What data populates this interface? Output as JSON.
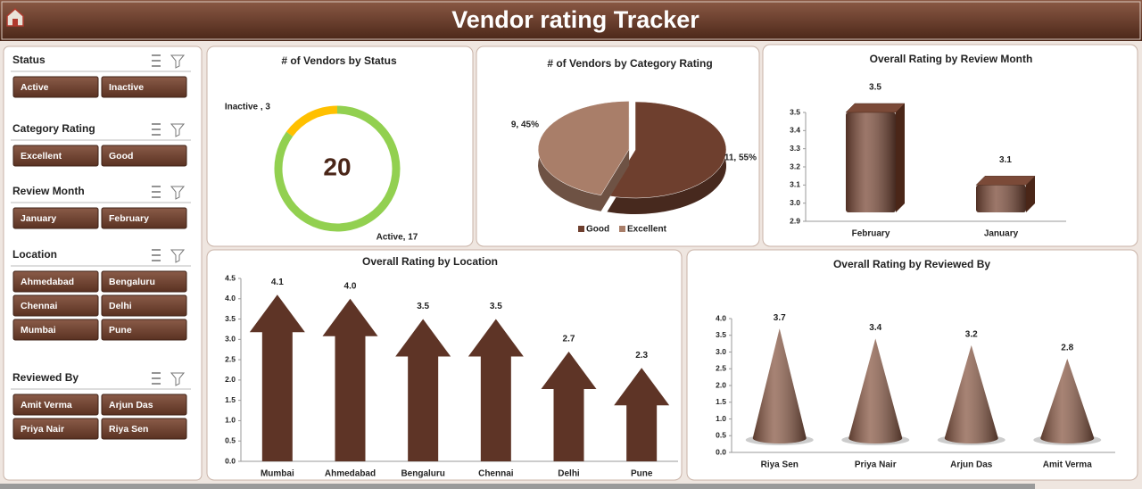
{
  "header": {
    "title": "Vendor rating Tracker"
  },
  "slicers": [
    {
      "title": "Status",
      "items": [
        "Active",
        "Inactive"
      ]
    },
    {
      "title": "Category Rating",
      "items": [
        "Excellent",
        "Good"
      ]
    },
    {
      "title": "Review Month",
      "items": [
        "January",
        "February"
      ]
    },
    {
      "title": "Location",
      "items": [
        "Ahmedabad",
        "Bengaluru",
        "Chennai",
        "Delhi",
        "Mumbai",
        "Pune"
      ]
    },
    {
      "title": "Reviewed By",
      "items": [
        "Amit Verma",
        "Arjun Das",
        "Priya Nair",
        "Riya Sen"
      ]
    }
  ],
  "chart_data": [
    {
      "type": "doughnut",
      "title": "# of Vendors by Status",
      "categories": [
        "Active",
        "Inactive"
      ],
      "values": [
        17,
        3
      ],
      "value_labels": [
        "Active, 17",
        "Inactive , 3"
      ],
      "colors": [
        "#92d050",
        "#ffc000"
      ],
      "total": 20
    },
    {
      "type": "pie",
      "title": "# of Vendors by Category Rating",
      "categories": [
        "Good",
        "Excellent"
      ],
      "values": [
        11,
        9
      ],
      "value_labels": [
        "11, 55%",
        "9, 45%"
      ],
      "colors": [
        "#6e3f2e",
        "#a97e69"
      ],
      "legend": "bottom"
    },
    {
      "type": "bar",
      "title": "Overall Rating by Review Month",
      "categories": [
        "February",
        "January"
      ],
      "values": [
        3.5,
        3.1
      ],
      "color": "#7b4a38",
      "ylim": [
        2.9,
        3.5
      ],
      "yticks": [
        2.9,
        {
          "value": 3,
          "label": "3.0"
        },
        3.1,
        3.2,
        3.3,
        3.4,
        3.5
      ]
    },
    {
      "type": "arrow",
      "title": "Overall Rating by Location",
      "categories": [
        "Mumbai",
        "Ahmedabad",
        "Bengaluru",
        "Chennai",
        "Delhi",
        "Pune"
      ],
      "values": [
        4.1,
        4.0,
        3.5,
        3.5,
        2.7,
        2.3
      ],
      "value_labels": [
        "4.1",
        "4.0",
        "3.5",
        "3.5",
        "2.7",
        "2.3"
      ],
      "color": "#5e3426",
      "ylim": [
        0,
        4.5
      ],
      "yticks": [
        {
          "value": 0,
          "label": "0.0"
        },
        0.5,
        {
          "value": 1,
          "label": "1.0"
        },
        1.5,
        {
          "value": 2,
          "label": "2.0"
        },
        2.5,
        {
          "value": 3,
          "label": "3.0"
        },
        3.5,
        {
          "value": 4,
          "label": "4.0"
        },
        4.5
      ]
    },
    {
      "type": "cone",
      "title": "Overall Rating by Reviewed By",
      "categories": [
        "Riya Sen",
        "Priya Nair",
        "Arjun Das",
        "Amit Verma"
      ],
      "values": [
        3.7,
        3.4,
        3.2,
        2.8
      ],
      "color": "#8a5a46",
      "ylim": [
        0,
        4
      ],
      "yticks": [
        {
          "value": 0,
          "label": "0.0"
        },
        0.5,
        {
          "value": 1,
          "label": "1.0"
        },
        1.5,
        {
          "value": 2,
          "label": "2.0"
        },
        2.5,
        {
          "value": 3,
          "label": "3.0"
        },
        3.5,
        {
          "value": 4,
          "label": "4.0"
        }
      ]
    }
  ]
}
